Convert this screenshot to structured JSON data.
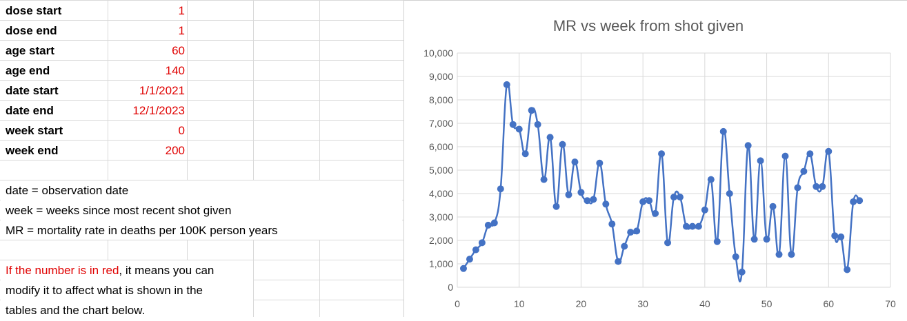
{
  "params": [
    {
      "label": "dose start",
      "value": "1"
    },
    {
      "label": "dose end",
      "value": "1"
    },
    {
      "label": "age start",
      "value": "60"
    },
    {
      "label": "age end",
      "value": "140"
    },
    {
      "label": "date start",
      "value": "1/1/2021"
    },
    {
      "label": "date end",
      "value": "12/1/2023"
    },
    {
      "label": "week start",
      "value": "0"
    },
    {
      "label": "week end",
      "value": "200"
    }
  ],
  "notes": {
    "date_def": "date = observation date",
    "week_def": "week = weeks since most recent shot given",
    "mr_def": "MR = mortality rate in deaths per 100K person years",
    "red_part": "If the number is in red",
    "red_rest": ", it means you can",
    "line2": "modify it to affect what is shown in the",
    "line3": "tables and the chart below."
  },
  "colors": {
    "accent_red": "#e00000",
    "series_blue": "#4472c4"
  },
  "chart_data": {
    "type": "line",
    "title": "MR vs week from shot given",
    "xlabel": "",
    "ylabel": "",
    "xlim": [
      0,
      70
    ],
    "ylim": [
      0,
      10000
    ],
    "x_ticks": [
      0,
      10,
      20,
      30,
      40,
      50,
      60,
      70
    ],
    "y_ticks": [
      0,
      1000,
      2000,
      3000,
      4000,
      5000,
      6000,
      7000,
      8000,
      9000,
      10000
    ],
    "x_tick_labels": [
      "0",
      "10",
      "20",
      "30",
      "40",
      "50",
      "60",
      "70"
    ],
    "y_tick_labels": [
      "0",
      "1,000",
      "2,000",
      "3,000",
      "4,000",
      "5,000",
      "6,000",
      "7,000",
      "8,000",
      "9,000",
      "10,000"
    ],
    "grid": true,
    "legend": "none",
    "series": [
      {
        "x": [
          1,
          2,
          3,
          4,
          5,
          6,
          7,
          8,
          9,
          10,
          11,
          12,
          13,
          14,
          15,
          16,
          17,
          18,
          19,
          20,
          21,
          22,
          23,
          24,
          25,
          26,
          27,
          28,
          29,
          30,
          31,
          32,
          33,
          34,
          35,
          36,
          37,
          38,
          39,
          40,
          41,
          42,
          43,
          44,
          45,
          46,
          47,
          48,
          49,
          50,
          51,
          52,
          53,
          54,
          55,
          56,
          57,
          58,
          59,
          60,
          61,
          62,
          63,
          64,
          65
        ],
        "values": [
          800,
          1200,
          1600,
          1900,
          2650,
          2750,
          4200,
          8650,
          6950,
          6750,
          5700,
          7550,
          6950,
          4600,
          6400,
          3450,
          6100,
          3950,
          5350,
          4050,
          3700,
          3750,
          5300,
          3550,
          2700,
          1100,
          1750,
          2350,
          2400,
          3650,
          3700,
          3150,
          5700,
          1900,
          3850,
          3850,
          2600,
          2600,
          2600,
          3300,
          4600,
          1950,
          6650,
          4000,
          1300,
          650,
          6050,
          2050,
          5400,
          2050,
          3450,
          1400,
          5600,
          1400,
          4250,
          4950,
          5700,
          4300,
          4300,
          5800,
          2200,
          2150,
          750,
          3650,
          3700
        ]
      }
    ]
  }
}
